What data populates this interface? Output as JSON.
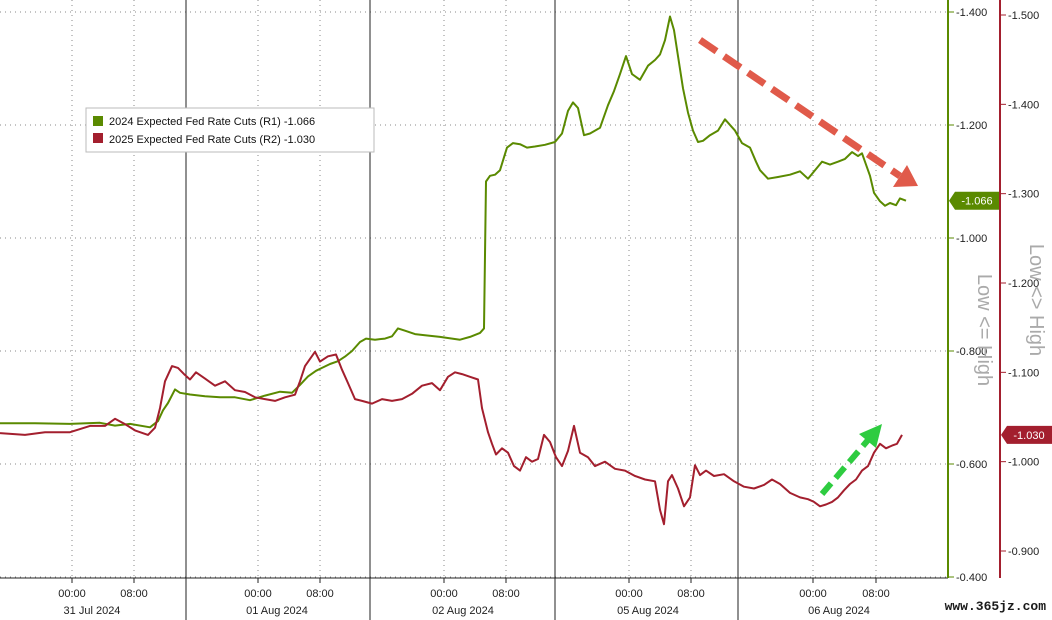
{
  "chart_data": {
    "type": "line",
    "title": "",
    "xlabel": "",
    "x_time_ticks": [
      "00:00",
      "08:00",
      "00:00",
      "08:00",
      "00:00",
      "08:00",
      "00:00",
      "08:00",
      "00:00",
      "08:00"
    ],
    "x_date_labels": [
      "31 Jul 2024",
      "01 Aug 2024",
      "02 Aug 2024",
      "05 Aug 2024",
      "06 Aug 2024"
    ],
    "y_left_label": "Low <= High",
    "y_right_label": "Low <> High",
    "y_left_ticks": [
      "-1.400",
      "-1.200",
      "-1.000",
      "-0.800",
      "-0.600",
      "-0.400"
    ],
    "y_right_ticks": [
      "-1.500",
      "-1.400",
      "-1.300",
      "-1.200",
      "-1.100",
      "-1.000",
      "-0.900"
    ],
    "y_left_range": [
      -1.4,
      -0.4
    ],
    "y_right_range": [
      -1.5,
      -0.9
    ],
    "grid": true,
    "legend_position": "top-left",
    "series": [
      {
        "name": "2024 Expected Fed Rate Cuts (R1)",
        "legend_value": "-1.066",
        "last_value_tag": "-1.066",
        "axis": "left",
        "color": "#5a8a00",
        "x": [
          0,
          35,
          70,
          100,
          115,
          130,
          150,
          158,
          163,
          168,
          175,
          180,
          190,
          205,
          220,
          235,
          250,
          265,
          280,
          292,
          300,
          308,
          316,
          322,
          330,
          338,
          345,
          352,
          360,
          366,
          375,
          385,
          392,
          398,
          405,
          415,
          425,
          440,
          460,
          470,
          480,
          484,
          486,
          490,
          495,
          500,
          507,
          513,
          520,
          527,
          535,
          545,
          555,
          562,
          568,
          573,
          578,
          584,
          590,
          600,
          608,
          614,
          620,
          626,
          632,
          640,
          648,
          655,
          660,
          665,
          670,
          674,
          678,
          683,
          688,
          693,
          698,
          703,
          710,
          718,
          725,
          735,
          742,
          750,
          756,
          760,
          768,
          778,
          790,
          800,
          808,
          815,
          822,
          830,
          838,
          845,
          852,
          858,
          862,
          866,
          870,
          874,
          880,
          885,
          890,
          896,
          900,
          906
        ],
        "y": [
          -0.672,
          -0.672,
          -0.671,
          -0.673,
          -0.668,
          -0.671,
          -0.665,
          -0.676,
          -0.695,
          -0.708,
          -0.732,
          -0.726,
          -0.723,
          -0.72,
          -0.718,
          -0.718,
          -0.713,
          -0.721,
          -0.728,
          -0.726,
          -0.74,
          -0.755,
          -0.765,
          -0.77,
          -0.777,
          -0.782,
          -0.79,
          -0.8,
          -0.816,
          -0.822,
          -0.82,
          -0.822,
          -0.826,
          -0.84,
          -0.836,
          -0.83,
          -0.828,
          -0.825,
          -0.82,
          -0.825,
          -0.832,
          -0.84,
          -1.1,
          -1.11,
          -1.112,
          -1.12,
          -1.16,
          -1.168,
          -1.166,
          -1.16,
          -1.162,
          -1.165,
          -1.17,
          -1.185,
          -1.225,
          -1.24,
          -1.23,
          -1.182,
          -1.185,
          -1.195,
          -1.235,
          -1.26,
          -1.29,
          -1.322,
          -1.29,
          -1.28,
          -1.305,
          -1.315,
          -1.325,
          -1.35,
          -1.392,
          -1.368,
          -1.322,
          -1.265,
          -1.222,
          -1.19,
          -1.17,
          -1.172,
          -1.182,
          -1.19,
          -1.21,
          -1.19,
          -1.168,
          -1.16,
          -1.135,
          -1.12,
          -1.105,
          -1.108,
          -1.112,
          -1.118,
          -1.105,
          -1.12,
          -1.135,
          -1.13,
          -1.135,
          -1.14,
          -1.152,
          -1.145,
          -1.15,
          -1.13,
          -1.11,
          -1.08,
          -1.065,
          -1.057,
          -1.062,
          -1.058,
          -1.07,
          -1.066
        ]
      },
      {
        "name": "2025 Expected Fed Rate Cuts (R2)",
        "legend_value": "-1.030",
        "last_value_tag": "-1.030",
        "axis": "right",
        "color": "#a31f2e",
        "x": [
          0,
          25,
          45,
          70,
          90,
          105,
          115,
          125,
          135,
          148,
          155,
          160,
          165,
          172,
          178,
          184,
          190,
          196,
          205,
          215,
          225,
          235,
          245,
          255,
          265,
          275,
          285,
          295,
          300,
          305,
          310,
          315,
          320,
          328,
          336,
          342,
          348,
          355,
          362,
          372,
          382,
          392,
          402,
          412,
          422,
          432,
          440,
          448,
          455,
          462,
          470,
          478,
          482,
          488,
          492,
          496,
          502,
          508,
          514,
          520,
          526,
          532,
          538,
          544,
          550,
          556,
          562,
          568,
          574,
          580,
          588,
          595,
          605,
          615,
          625,
          635,
          645,
          655,
          660,
          664,
          668,
          672,
          678,
          684,
          690,
          695,
          700,
          706,
          714,
          724,
          734,
          744,
          754,
          764,
          772,
          780,
          790,
          800,
          808,
          814,
          820,
          826,
          832,
          838,
          844,
          850,
          856,
          862,
          868,
          874,
          880,
          886,
          892,
          897,
          902
        ],
        "y": [
          -1.032,
          -1.03,
          -1.033,
          -1.033,
          -1.04,
          -1.04,
          -1.048,
          -1.042,
          -1.035,
          -1.03,
          -1.038,
          -1.06,
          -1.09,
          -1.107,
          -1.105,
          -1.098,
          -1.092,
          -1.1,
          -1.093,
          -1.085,
          -1.09,
          -1.08,
          -1.078,
          -1.072,
          -1.07,
          -1.068,
          -1.072,
          -1.075,
          -1.09,
          -1.107,
          -1.115,
          -1.123,
          -1.112,
          -1.118,
          -1.12,
          -1.103,
          -1.088,
          -1.07,
          -1.068,
          -1.065,
          -1.07,
          -1.068,
          -1.07,
          -1.076,
          -1.085,
          -1.088,
          -1.08,
          -1.095,
          -1.1,
          -1.098,
          -1.095,
          -1.092,
          -1.06,
          -1.033,
          -1.02,
          -1.008,
          -1.015,
          -1.01,
          -0.995,
          -0.99,
          -1.005,
          -1.0,
          -1.003,
          -1.03,
          -1.022,
          -1.005,
          -0.995,
          -1.012,
          -1.04,
          -1.01,
          -1.005,
          -0.995,
          -1.0,
          -0.992,
          -0.99,
          -0.984,
          -0.98,
          -0.978,
          -0.946,
          -0.93,
          -0.978,
          -0.985,
          -0.97,
          -0.95,
          -0.96,
          -0.996,
          -0.985,
          -0.99,
          -0.984,
          -0.986,
          -0.978,
          -0.972,
          -0.97,
          -0.974,
          -0.98,
          -0.975,
          -0.965,
          -0.96,
          -0.958,
          -0.955,
          -0.95,
          -0.952,
          -0.955,
          -0.96,
          -0.968,
          -0.975,
          -0.98,
          -0.99,
          -0.995,
          -1.01,
          -1.02,
          -1.015,
          -1.018,
          -1.02,
          -1.03
        ]
      }
    ],
    "annotations": [
      {
        "type": "arrow",
        "direction": "down",
        "color": "#e05a4a"
      },
      {
        "type": "arrow",
        "direction": "up",
        "color": "#2ecc40"
      }
    ]
  },
  "watermark": "www.365jz.com"
}
